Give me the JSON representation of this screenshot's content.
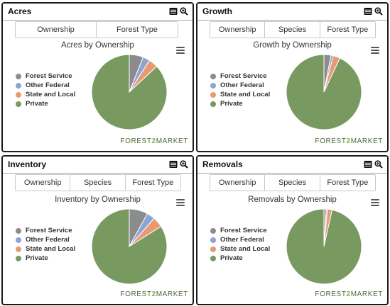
{
  "panels": [
    {
      "title": "Acres",
      "tabs": [
        "Ownership",
        "Forest Type"
      ],
      "chart_title": "Acres by Ownership"
    },
    {
      "title": "Growth",
      "tabs": [
        "Ownership",
        "Species",
        "Forest Type"
      ],
      "chart_title": "Growth by Ownership"
    },
    {
      "title": "Inventory",
      "tabs": [
        "Ownership",
        "Species",
        "Forest Type"
      ],
      "chart_title": "Inventory by Ownership"
    },
    {
      "title": "Removals",
      "tabs": [
        "Ownership",
        "Species",
        "Forest Type"
      ],
      "chart_title": "Removals by Ownership"
    }
  ],
  "brand": {
    "left": "FOREST",
    "num": "2",
    "right": "MARKET"
  },
  "icons": {
    "header": [
      "table-icon",
      "zoom-icon"
    ],
    "chart_menu": "hamburger-menu-icon"
  },
  "chart_data": [
    {
      "type": "pie",
      "title": "Acres by Ownership",
      "categories": [
        "Forest Service",
        "Other Federal",
        "State and Local",
        "Private"
      ],
      "values": [
        6,
        3,
        4,
        87
      ],
      "colors": [
        "#8c8c8c",
        "#8ea3d6",
        "#e89b70",
        "#789a61"
      ]
    },
    {
      "type": "pie",
      "title": "Growth by Ownership",
      "categories": [
        "Forest Service",
        "Other Federal",
        "State and Local",
        "Private"
      ],
      "values": [
        3,
        1,
        3,
        93
      ],
      "colors": [
        "#8c8c8c",
        "#8ea3d6",
        "#e89b70",
        "#789a61"
      ]
    },
    {
      "type": "pie",
      "title": "Inventory by Ownership",
      "categories": [
        "Forest Service",
        "Other Federal",
        "State and Local",
        "Private"
      ],
      "values": [
        8,
        3.5,
        4.5,
        84
      ],
      "colors": [
        "#8c8c8c",
        "#8ea3d6",
        "#e89b70",
        "#789a61"
      ]
    },
    {
      "type": "pie",
      "title": "Removals by Ownership",
      "categories": [
        "Forest Service",
        "Other Federal",
        "State and Local",
        "Private"
      ],
      "values": [
        1,
        0.5,
        2,
        96.5
      ],
      "colors": [
        "#8c8c8c",
        "#8ea3d6",
        "#e89b70",
        "#789a61"
      ]
    }
  ]
}
